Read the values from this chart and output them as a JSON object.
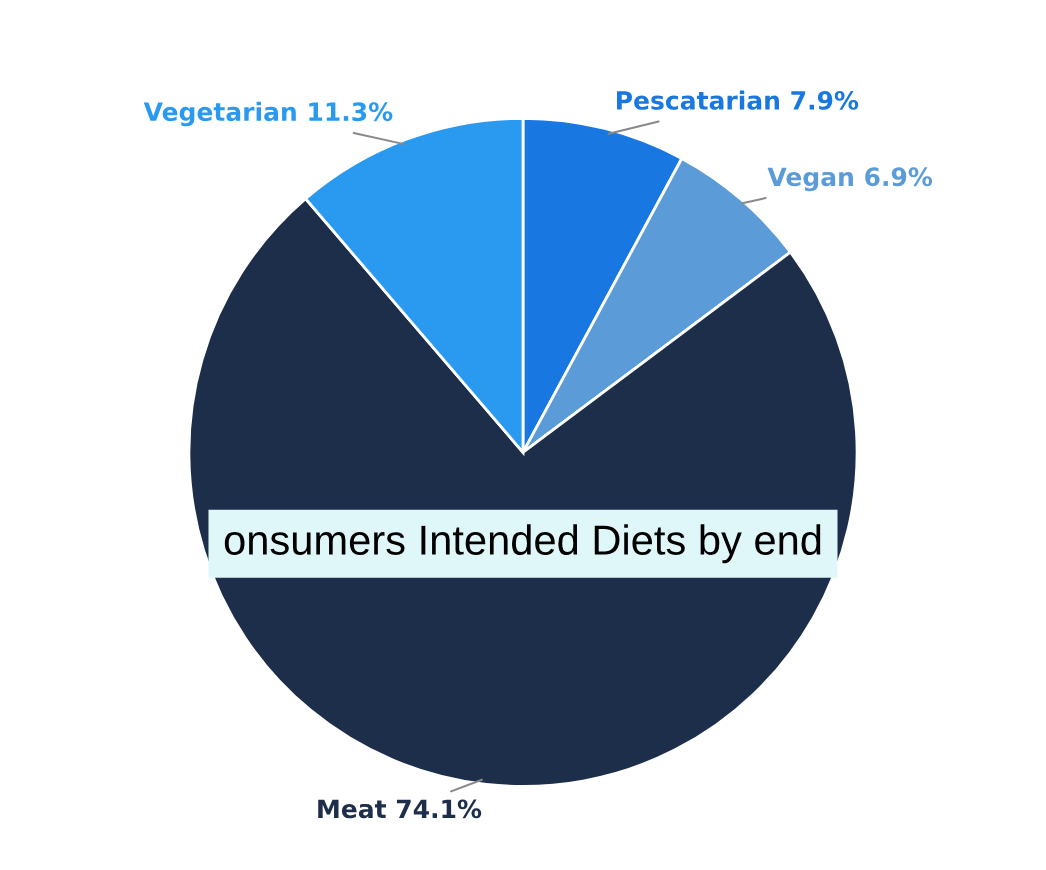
{
  "chart_data": {
    "type": "pie",
    "categories": [
      "Pescatarian",
      "Vegan",
      "Meat",
      "Vegetarian"
    ],
    "values": [
      7.9,
      6.9,
      74.1,
      11.3
    ],
    "value_labels": [
      "7.9%",
      "6.9%",
      "74.1%",
      "11.3%"
    ],
    "colors": [
      "#1877e0",
      "#5a9bd8",
      "#1d2e4b",
      "#2a9af0"
    ],
    "annotations": [
      "onsumers Intended Diets by end"
    ],
    "legend": false
  }
}
